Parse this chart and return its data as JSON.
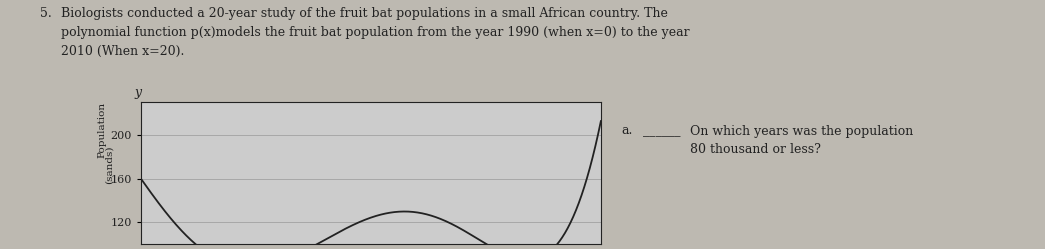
{
  "title_number": "5.",
  "title_text": "Biologists conducted a 20-year study of the fruit bat populations in a small African country. The\npolynomial function p(x)models the fruit bat population from the year 1990 (when x=0) to the year\n2010 (When x=20).",
  "question_label": "a.",
  "question_line": "___",
  "question_text": "On which years was the population\n80 thousand or less?",
  "ylabel_line1": "Population",
  "ylabel_line2": "(sands)",
  "y_tick_labels": [
    "120",
    "160",
    "200"
  ],
  "y_tick_values": [
    120,
    160,
    200
  ],
  "ylim": [
    100,
    230
  ],
  "xlim": [
    0,
    20
  ],
  "grid_color": "#999999",
  "background_color": "#cccccc",
  "curve_color": "#222222",
  "axis_color": "#222222",
  "text_color": "#222222",
  "bg_page_color": "#bdb9b1",
  "curve_xp": [
    0,
    2,
    5,
    9,
    12,
    15,
    18,
    20
  ],
  "curve_yp": [
    162,
    100,
    88,
    110,
    125,
    110,
    90,
    215
  ]
}
